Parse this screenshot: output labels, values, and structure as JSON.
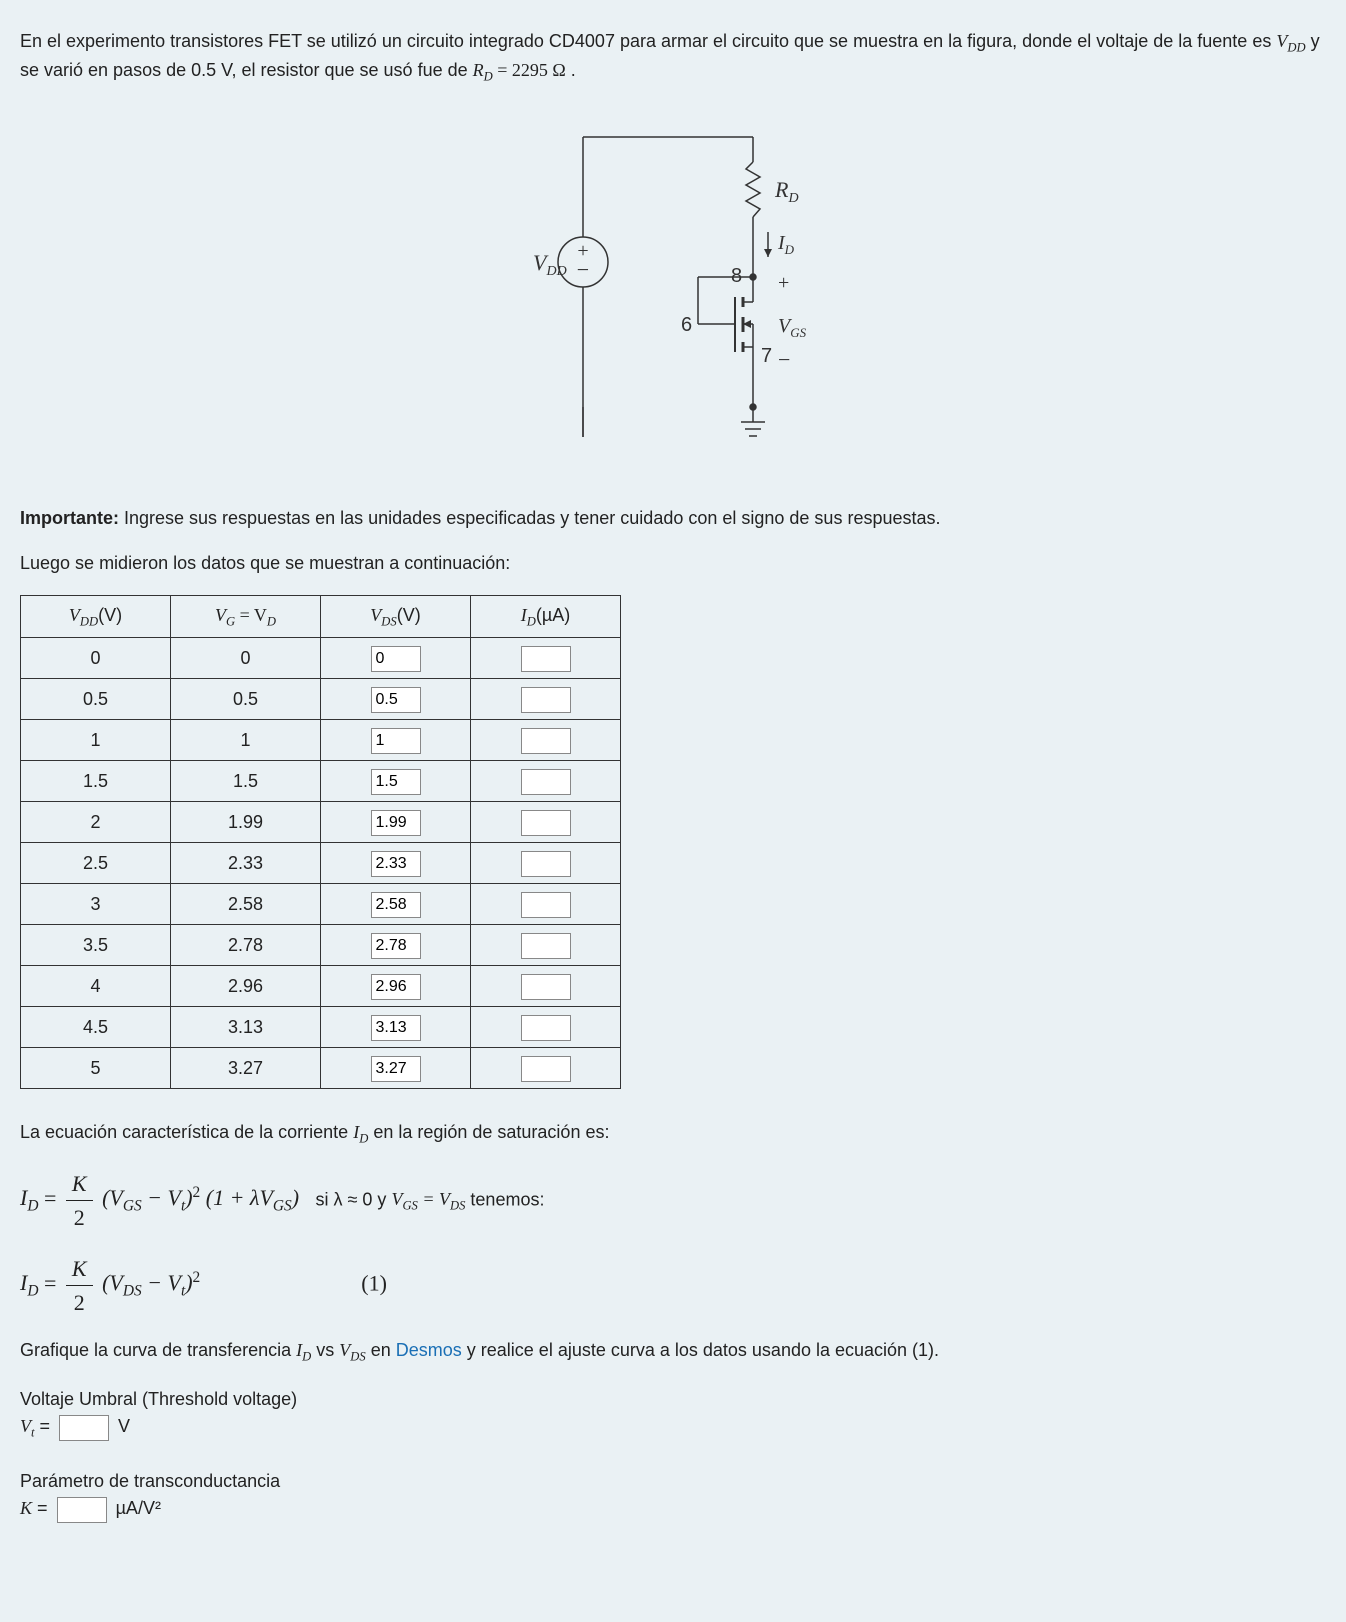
{
  "intro": {
    "p1_a": "En el experimento transistores FET se utilizó un circuito integrado CD4007 para armar el circuito que se muestra en la figura, donde el voltaje de la fuente es ",
    "p1_b": " y se varió en pasos de 0.5 V, el resistor que se usó fue de ",
    "p1_c": ".",
    "vdd": "V",
    "vdd_sub": "DD",
    "rd": "R",
    "rd_sub": "D",
    "rd_val": " = 2295 Ω"
  },
  "circuit": {
    "label_vdd": "V",
    "label_vdd_sub": "DD",
    "label_rd": "R",
    "label_rd_sub": "D",
    "label_id": "I",
    "label_id_sub": "D",
    "label_vgs": "V",
    "label_vgs_sub": "GS",
    "pin8": "8",
    "pin6": "6",
    "pin7": "7",
    "plus": "+",
    "minus": "−"
  },
  "important": {
    "bold": "Importante:",
    "rest": " Ingrese sus respuestas en las unidades especificadas y tener cuidado con el signo de sus respuestas."
  },
  "table_intro": "Luego se midieron los datos que se muestran a continuación:",
  "table": {
    "headers": {
      "h1a": "V",
      "h1b": "DD",
      "h1c": "(V)",
      "h2a": "V",
      "h2b": "G",
      "h2c": " = V",
      "h2d": "D",
      "h3a": "V",
      "h3b": "DS",
      "h3c": "(V)",
      "h4a": "I",
      "h4b": "D",
      "h4c": "(µA)"
    },
    "rows": [
      {
        "vdd": "0",
        "vg": "0",
        "vds": "0"
      },
      {
        "vdd": "0.5",
        "vg": "0.5",
        "vds": "0.5"
      },
      {
        "vdd": "1",
        "vg": "1",
        "vds": "1"
      },
      {
        "vdd": "1.5",
        "vg": "1.5",
        "vds": "1.5"
      },
      {
        "vdd": "2",
        "vg": "1.99",
        "vds": "1.99"
      },
      {
        "vdd": "2.5",
        "vg": "2.33",
        "vds": "2.33"
      },
      {
        "vdd": "3",
        "vg": "2.58",
        "vds": "2.58"
      },
      {
        "vdd": "3.5",
        "vg": "2.78",
        "vds": "2.78"
      },
      {
        "vdd": "4",
        "vg": "2.96",
        "vds": "2.96"
      },
      {
        "vdd": "4.5",
        "vg": "3.13",
        "vds": "3.13"
      },
      {
        "vdd": "5",
        "vg": "3.27",
        "vds": "3.27"
      }
    ]
  },
  "eq": {
    "intro_a": "La ecuación característica de la corriente ",
    "intro_b": " en la región de saturación es:",
    "cond": "si λ ≈ 0 y ",
    "cond2": " tenemos:",
    "one": "(1)",
    "plot_a": "Grafique la curva de transferencia ",
    "plot_b": " vs ",
    "plot_c": " en ",
    "desmos": "Desmos",
    "plot_d": " y realice el ajuste curva a los datos usando la ecuación (1).",
    "vt_label": "Voltaje Umbral (Threshold voltage)",
    "vt_sym": "V",
    "vt_sub": "t",
    "vt_eq": " = ",
    "vt_unit": " V",
    "k_label": "Parámetro de transconductancia",
    "k_sym": "K",
    "k_eq": " = ",
    "k_unit": " µA/V²",
    "id_sym": "I",
    "id_sub": "D",
    "vgs_sym": "V",
    "vgs_sub": "GS",
    "vds_sym": "V",
    "vds_sub": "DS",
    "K": "K",
    "two": "2"
  }
}
